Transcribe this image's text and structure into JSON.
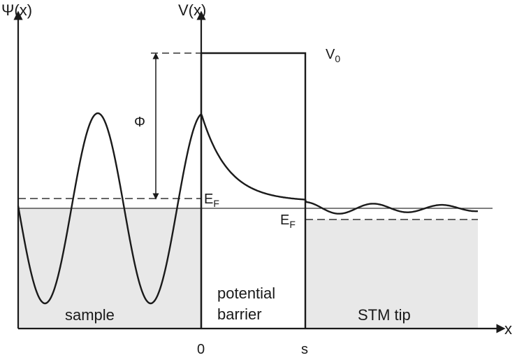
{
  "diagram": {
    "axis_labels": {
      "psi": "Ψ(x)",
      "potential": "V(x)",
      "x": "x"
    },
    "ticks": {
      "origin": "0",
      "barrier_width": "s"
    },
    "levels": {
      "v0_main": "V",
      "v0_sub": "0",
      "ef_main": "E",
      "ef_sub": "F",
      "ef_tip_main": "E",
      "ef_tip_sub": "F",
      "work_function": "Φ"
    },
    "regions": {
      "sample": "sample",
      "barrier_line1": "potential",
      "barrier_line2": "barrier",
      "tip": "STM tip"
    }
  }
}
